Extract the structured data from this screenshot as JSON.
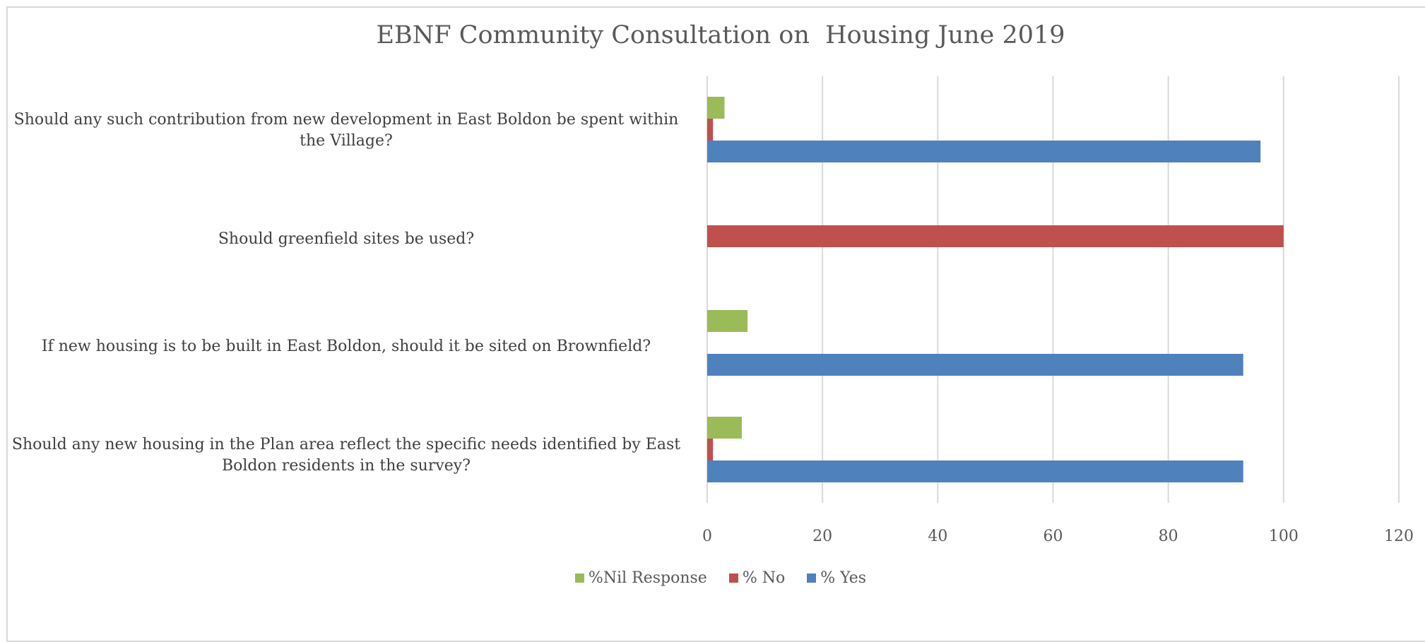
{
  "chart_data": {
    "type": "bar",
    "orientation": "horizontal",
    "title": "EBNF Community Consultation on  Housing June 2019",
    "xlabel": "",
    "ylabel": "",
    "xlim": [
      0,
      120
    ],
    "x_ticks": [
      "0",
      "20",
      "40",
      "60",
      "80",
      "100",
      "120"
    ],
    "grid": "vertical",
    "legend_position": "bottom",
    "categories": [
      "Should any such contribution from new development in East Boldon be spent within the Village?",
      "Should greenfield sites be used?",
      "If new housing is to be built in East Boldon, should it be sited on Brownfield?",
      "Should any new housing in the Plan area reflect the specific needs identified by East Boldon residents in the survey?"
    ],
    "series": [
      {
        "name": "%Nil Response",
        "color": "#9bbb59",
        "values": [
          3,
          0,
          7,
          6
        ]
      },
      {
        "name": "% No",
        "color": "#c0504d",
        "values": [
          1,
          100,
          0,
          1
        ]
      },
      {
        "name": "% Yes",
        "color": "#4f81bd",
        "values": [
          96,
          0,
          93,
          93
        ]
      }
    ],
    "legend": [
      {
        "label": "%Nil Response",
        "color": "#9bbb59"
      },
      {
        "label": "% No",
        "color": "#c0504d"
      },
      {
        "label": "% Yes",
        "color": "#4f81bd"
      }
    ]
  }
}
